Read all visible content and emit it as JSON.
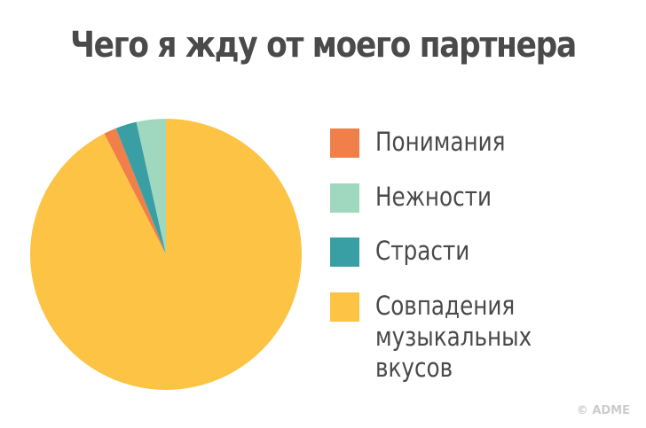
{
  "chart_data": {
    "type": "pie",
    "title": "Чего я жду от моего партнера",
    "categories": [
      "Понимания",
      "Нежности",
      "Страсти",
      "Совпадения музыкальных вкусов"
    ],
    "values": [
      1.5,
      3.5,
      2.5,
      92.5
    ],
    "colors": [
      "#f07f4a",
      "#9fd8bf",
      "#3a9ea5",
      "#fcc345"
    ]
  },
  "watermark": "© ADME"
}
